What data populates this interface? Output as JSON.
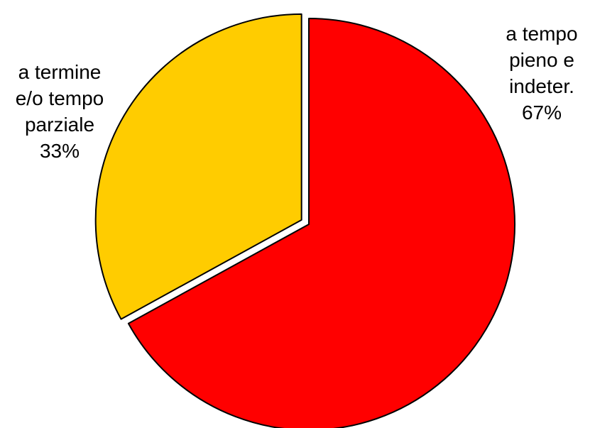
{
  "chart_data": {
    "type": "pie",
    "slices": [
      {
        "label_lines": [
          "a tempo",
          "pieno e",
          "indeter.",
          "67%"
        ],
        "value": 67,
        "color": "#ff0000",
        "exploded": false
      },
      {
        "label_lines": [
          "a termine",
          "e/o tempo",
          "parziale",
          "33%"
        ],
        "value": 33,
        "color": "#ffcc00",
        "exploded": true
      }
    ],
    "start": "12 o'clock",
    "direction": "clockwise",
    "legend": "none"
  }
}
